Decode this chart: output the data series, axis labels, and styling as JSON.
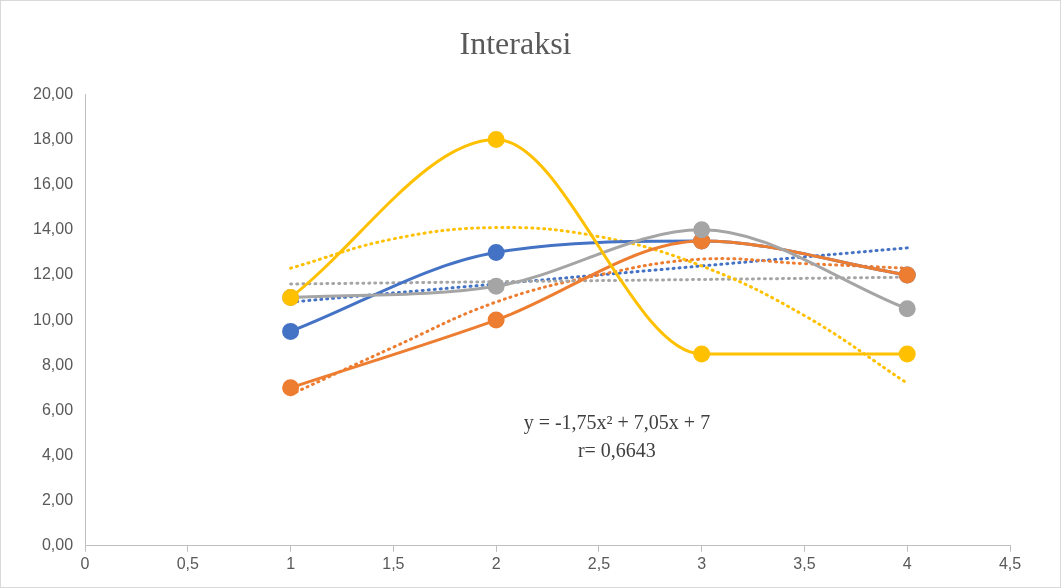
{
  "chart_data": {
    "type": "line",
    "title": "Interaksi",
    "x": [
      1,
      2,
      3,
      4
    ],
    "series": [
      {
        "color": "#4472c4",
        "values": [
          9.5,
          13,
          13.5,
          12
        ]
      },
      {
        "color": "#ed7d31",
        "values": [
          7,
          10,
          13.5,
          12
        ]
      },
      {
        "color": "#a5a5a5",
        "values": [
          11,
          11.5,
          14,
          10.5
        ]
      },
      {
        "color": "#ffc000",
        "values": [
          11,
          18,
          8.5,
          8.5
        ]
      },
      {
        "color": "#4472c4",
        "x": [
          1,
          4
        ],
        "values": [
          10.8,
          13.2
        ],
        "line_style": "dotted",
        "marker": "none"
      },
      {
        "color": "#ed7d31",
        "x": [
          1,
          1.5,
          2,
          2.5,
          3,
          3.5,
          4
        ],
        "values": [
          6.7,
          8.8,
          10.8,
          12.0,
          12.7,
          12.5,
          12.3
        ],
        "line_style": "dotted",
        "marker": "none"
      },
      {
        "color": "#a5a5a5",
        "x": [
          1,
          4
        ],
        "values": [
          11.6,
          11.9
        ],
        "line_style": "dotted",
        "marker": "none"
      },
      {
        "color": "#ffc000",
        "x": [
          1,
          1.5,
          2,
          2.5,
          3,
          3.5,
          4
        ],
        "values": [
          12.3,
          13.6,
          14.1,
          13.7,
          12.4,
          10.2,
          7.2
        ],
        "line_style": "dotted",
        "marker": "none"
      }
    ],
    "xlim": [
      0,
      4.5
    ],
    "xticks": [
      0,
      {
        "value": 0.5,
        "label": "0,5"
      },
      1,
      {
        "value": 1.5,
        "label": "1,5"
      },
      2,
      {
        "value": 2.5,
        "label": "2,5"
      },
      3,
      {
        "value": 3.5,
        "label": "3,5"
      },
      4,
      {
        "value": 4.5,
        "label": "4,5"
      }
    ],
    "ylim": [
      0,
      20
    ],
    "yticks": [
      {
        "value": 0,
        "label": "0,00"
      },
      {
        "value": 2,
        "label": "2,00"
      },
      {
        "value": 4,
        "label": "4,00"
      },
      {
        "value": 6,
        "label": "6,00"
      },
      {
        "value": 8,
        "label": "8,00"
      },
      {
        "value": 10,
        "label": "10,00"
      },
      {
        "value": 12,
        "label": "12,00"
      },
      {
        "value": 14,
        "label": "14,00"
      },
      {
        "value": 16,
        "label": "16,00"
      },
      {
        "value": 18,
        "label": "18,00"
      },
      {
        "value": 20,
        "label": "20,00"
      }
    ],
    "annotations": [
      "y = -1,75x² + 7,05x + 7",
      "r= 0,6643"
    ],
    "grid": false,
    "legend": false,
    "marker": "circle",
    "line_style": "solid"
  }
}
